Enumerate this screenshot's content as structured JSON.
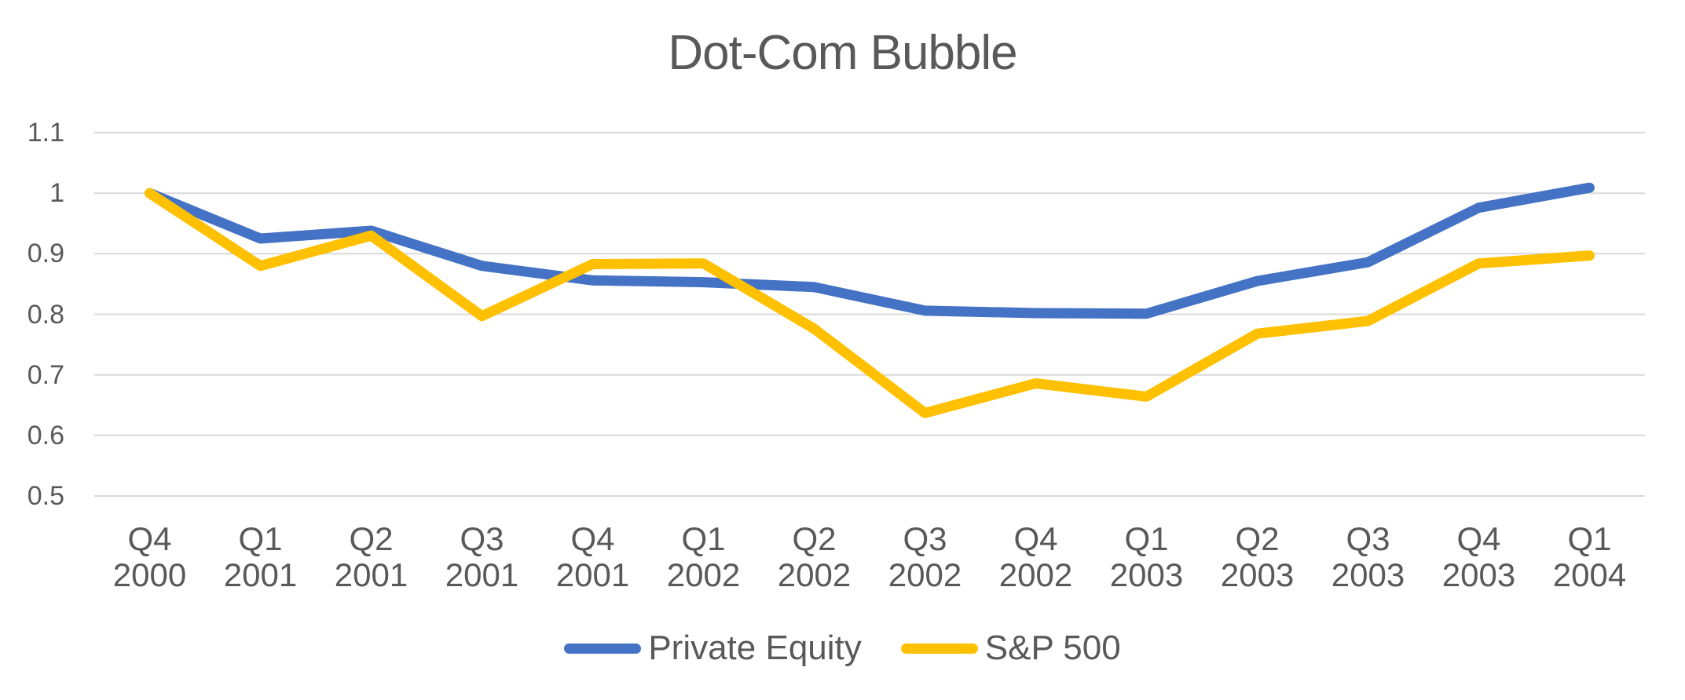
{
  "chart_data": {
    "type": "line",
    "title": "Dot-Com Bubble",
    "categories": [
      {
        "quarter": "Q4",
        "year": "2000"
      },
      {
        "quarter": "Q1",
        "year": "2001"
      },
      {
        "quarter": "Q2",
        "year": "2001"
      },
      {
        "quarter": "Q3",
        "year": "2001"
      },
      {
        "quarter": "Q4",
        "year": "2001"
      },
      {
        "quarter": "Q1",
        "year": "2002"
      },
      {
        "quarter": "Q2",
        "year": "2002"
      },
      {
        "quarter": "Q3",
        "year": "2002"
      },
      {
        "quarter": "Q4",
        "year": "2002"
      },
      {
        "quarter": "Q1",
        "year": "2003"
      },
      {
        "quarter": "Q2",
        "year": "2003"
      },
      {
        "quarter": "Q3",
        "year": "2003"
      },
      {
        "quarter": "Q4",
        "year": "2003"
      },
      {
        "quarter": "Q1",
        "year": "2004"
      }
    ],
    "series": [
      {
        "name": "Private Equity",
        "color": "#4472C4",
        "values": [
          1.0,
          0.925,
          0.938,
          0.88,
          0.856,
          0.853,
          0.845,
          0.806,
          0.802,
          0.801,
          0.855,
          0.886,
          0.976,
          1.009
        ]
      },
      {
        "name": "S&P 500",
        "color": "#FFC000",
        "values": [
          1.0,
          0.88,
          0.93,
          0.797,
          0.883,
          0.884,
          0.776,
          0.637,
          0.686,
          0.664,
          0.768,
          0.789,
          0.884,
          0.897
        ]
      }
    ],
    "yticks": [
      {
        "label": "1.1",
        "value": 1.1
      },
      {
        "label": "1",
        "value": 1.0
      },
      {
        "label": "0.9",
        "value": 0.9
      },
      {
        "label": "0.8",
        "value": 0.8
      },
      {
        "label": "0.7",
        "value": 0.7
      },
      {
        "label": "0.6",
        "value": 0.6
      },
      {
        "label": "0.5",
        "value": 0.5
      }
    ],
    "ylim": [
      0.5,
      1.1
    ],
    "grid": true,
    "legend_position": "bottom",
    "colors": {
      "gridline": "#D9D9D9",
      "text": "#595959",
      "background": "#FFFFFF"
    }
  }
}
